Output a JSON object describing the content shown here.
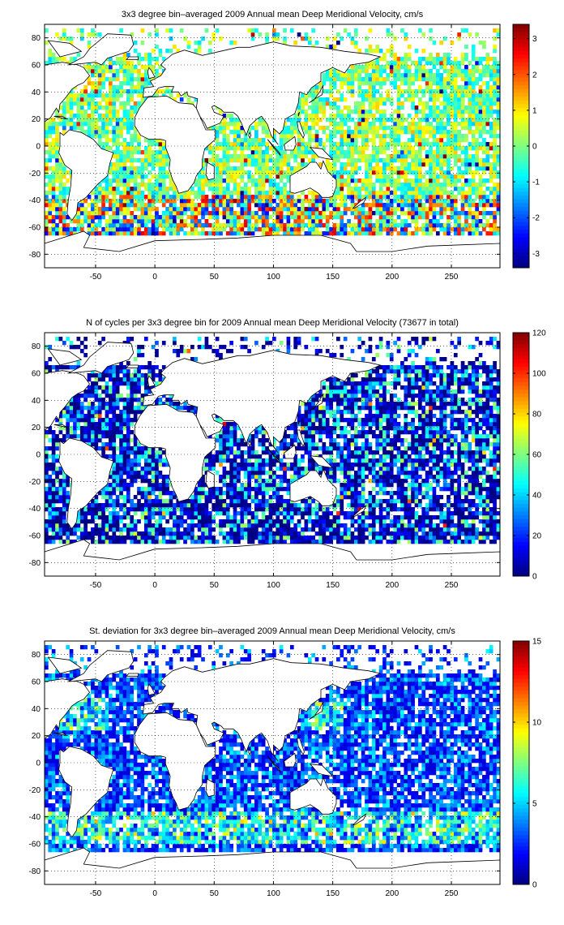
{
  "chart_data": [
    {
      "type": "heatmap",
      "title": "3x3 degree bin–averaged 2009 Annual mean Deep Meridional Velocity, cm/s",
      "xlim": [
        -93,
        291
      ],
      "ylim": [
        -90,
        90
      ],
      "xticks": [
        -50,
        0,
        50,
        100,
        150,
        200,
        250
      ],
      "yticks": [
        80,
        60,
        40,
        20,
        0,
        -20,
        -40,
        -60,
        -80
      ],
      "grid": true,
      "colormap": "jet",
      "colorbar": {
        "range": [
          -3.4,
          3.4
        ],
        "ticks": [
          3,
          2,
          1,
          0,
          -1,
          -2,
          -3
        ]
      },
      "bin_size_deg": 3
    },
    {
      "type": "heatmap",
      "title": "N of cycles per 3x3 degree bin for 2009 Annual mean Deep Meridional Velocity (73677 in total)",
      "xlim": [
        -93,
        291
      ],
      "ylim": [
        -90,
        90
      ],
      "xticks": [
        -50,
        0,
        50,
        100,
        150,
        200,
        250
      ],
      "yticks": [
        80,
        60,
        40,
        20,
        0,
        -20,
        -40,
        -60,
        -80
      ],
      "grid": true,
      "colormap": "jet",
      "colorbar": {
        "range": [
          0,
          120
        ],
        "ticks": [
          120,
          100,
          80,
          60,
          40,
          20,
          0
        ]
      },
      "bin_size_deg": 3
    },
    {
      "type": "heatmap",
      "title": "St. deviation for 3x3 degree bin–averaged 2009 Annual mean Deep Meridional Velocity, cm/s",
      "xlim": [
        -93,
        291
      ],
      "ylim": [
        -90,
        90
      ],
      "xticks": [
        -50,
        0,
        50,
        100,
        150,
        200,
        250
      ],
      "yticks": [
        80,
        60,
        40,
        20,
        0,
        -20,
        -40,
        -60,
        -80
      ],
      "grid": true,
      "colormap": "jet",
      "colorbar": {
        "range": [
          0,
          15
        ],
        "ticks": [
          15,
          10,
          5,
          0
        ]
      },
      "bin_size_deg": 3
    }
  ]
}
